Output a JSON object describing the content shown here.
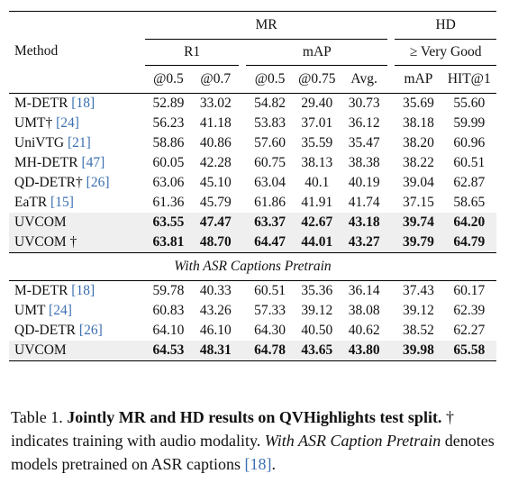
{
  "table": {
    "header": {
      "method": "Method",
      "mr": "MR",
      "hd": "HD",
      "r1": "R1",
      "map": "mAP",
      "very_good": "≥ Very Good",
      "sub": [
        "@0.5",
        "@0.7",
        "@0.5",
        "@0.75",
        "Avg.",
        "mAP",
        "HIT@1"
      ]
    },
    "section_label": "With ASR Captions Pretrain",
    "rows_main": [
      {
        "name": "M-DETR ",
        "ref": "[18]",
        "vals": [
          "52.89",
          "33.02",
          "54.82",
          "29.40",
          "30.73",
          "35.69",
          "55.60"
        ],
        "bold": false
      },
      {
        "name": "UMT† ",
        "ref": "[24]",
        "vals": [
          "56.23",
          "41.18",
          "53.83",
          "37.01",
          "36.12",
          "38.18",
          "59.99"
        ],
        "bold": false
      },
      {
        "name": "UniVTG ",
        "ref": "[21]",
        "vals": [
          "58.86",
          "40.86",
          "57.60",
          "35.59",
          "35.47",
          "38.20",
          "60.96"
        ],
        "bold": false
      },
      {
        "name": "MH-DETR ",
        "ref": "[47]",
        "vals": [
          "60.05",
          "42.28",
          "60.75",
          "38.13",
          "38.38",
          "38.22",
          "60.51"
        ],
        "bold": false
      },
      {
        "name": "QD-DETR† ",
        "ref": "[26]",
        "vals": [
          "63.06",
          "45.10",
          "63.04",
          "40.1",
          "40.19",
          "39.04",
          "62.87"
        ],
        "bold": false
      },
      {
        "name": "EaTR ",
        "ref": "[15]",
        "vals": [
          "61.36",
          "45.79",
          "61.86",
          "41.91",
          "41.74",
          "37.15",
          "58.65"
        ],
        "bold": false
      },
      {
        "name": "UVCOM",
        "ref": "",
        "vals": [
          "63.55",
          "47.47",
          "63.37",
          "42.67",
          "43.18",
          "39.74",
          "64.20"
        ],
        "bold": true
      },
      {
        "name": "UVCOM †",
        "ref": "",
        "vals": [
          "63.81",
          "48.70",
          "64.47",
          "44.01",
          "43.27",
          "39.79",
          "64.79"
        ],
        "bold": true
      }
    ],
    "rows_asr": [
      {
        "name": "M-DETR ",
        "ref": "[18]",
        "vals": [
          "59.78",
          "40.33",
          "60.51",
          "35.36",
          "36.14",
          "37.43",
          "60.17"
        ],
        "bold": false
      },
      {
        "name": "UMT ",
        "ref": "[24]",
        "vals": [
          "60.83",
          "43.26",
          "57.33",
          "39.12",
          "38.08",
          "39.12",
          "62.39"
        ],
        "bold": false
      },
      {
        "name": "QD-DETR ",
        "ref": "[26]",
        "vals": [
          "64.10",
          "46.10",
          "64.30",
          "40.50",
          "40.62",
          "38.52",
          "62.27"
        ],
        "bold": false
      },
      {
        "name": "UVCOM",
        "ref": "",
        "vals": [
          "64.53",
          "48.31",
          "64.78",
          "43.65",
          "43.80",
          "39.98",
          "65.58"
        ],
        "bold": true
      }
    ]
  },
  "caption": {
    "prefix": "Table 1. ",
    "title": "Jointly MR and HD results on QVHighlights test split.",
    "text1": " † indicates training with audio modality. ",
    "italic": "With ASR Caption Pretrain",
    "text2": " denotes models pretrained on ASR captions ",
    "ref": "[18]",
    "end": "."
  }
}
